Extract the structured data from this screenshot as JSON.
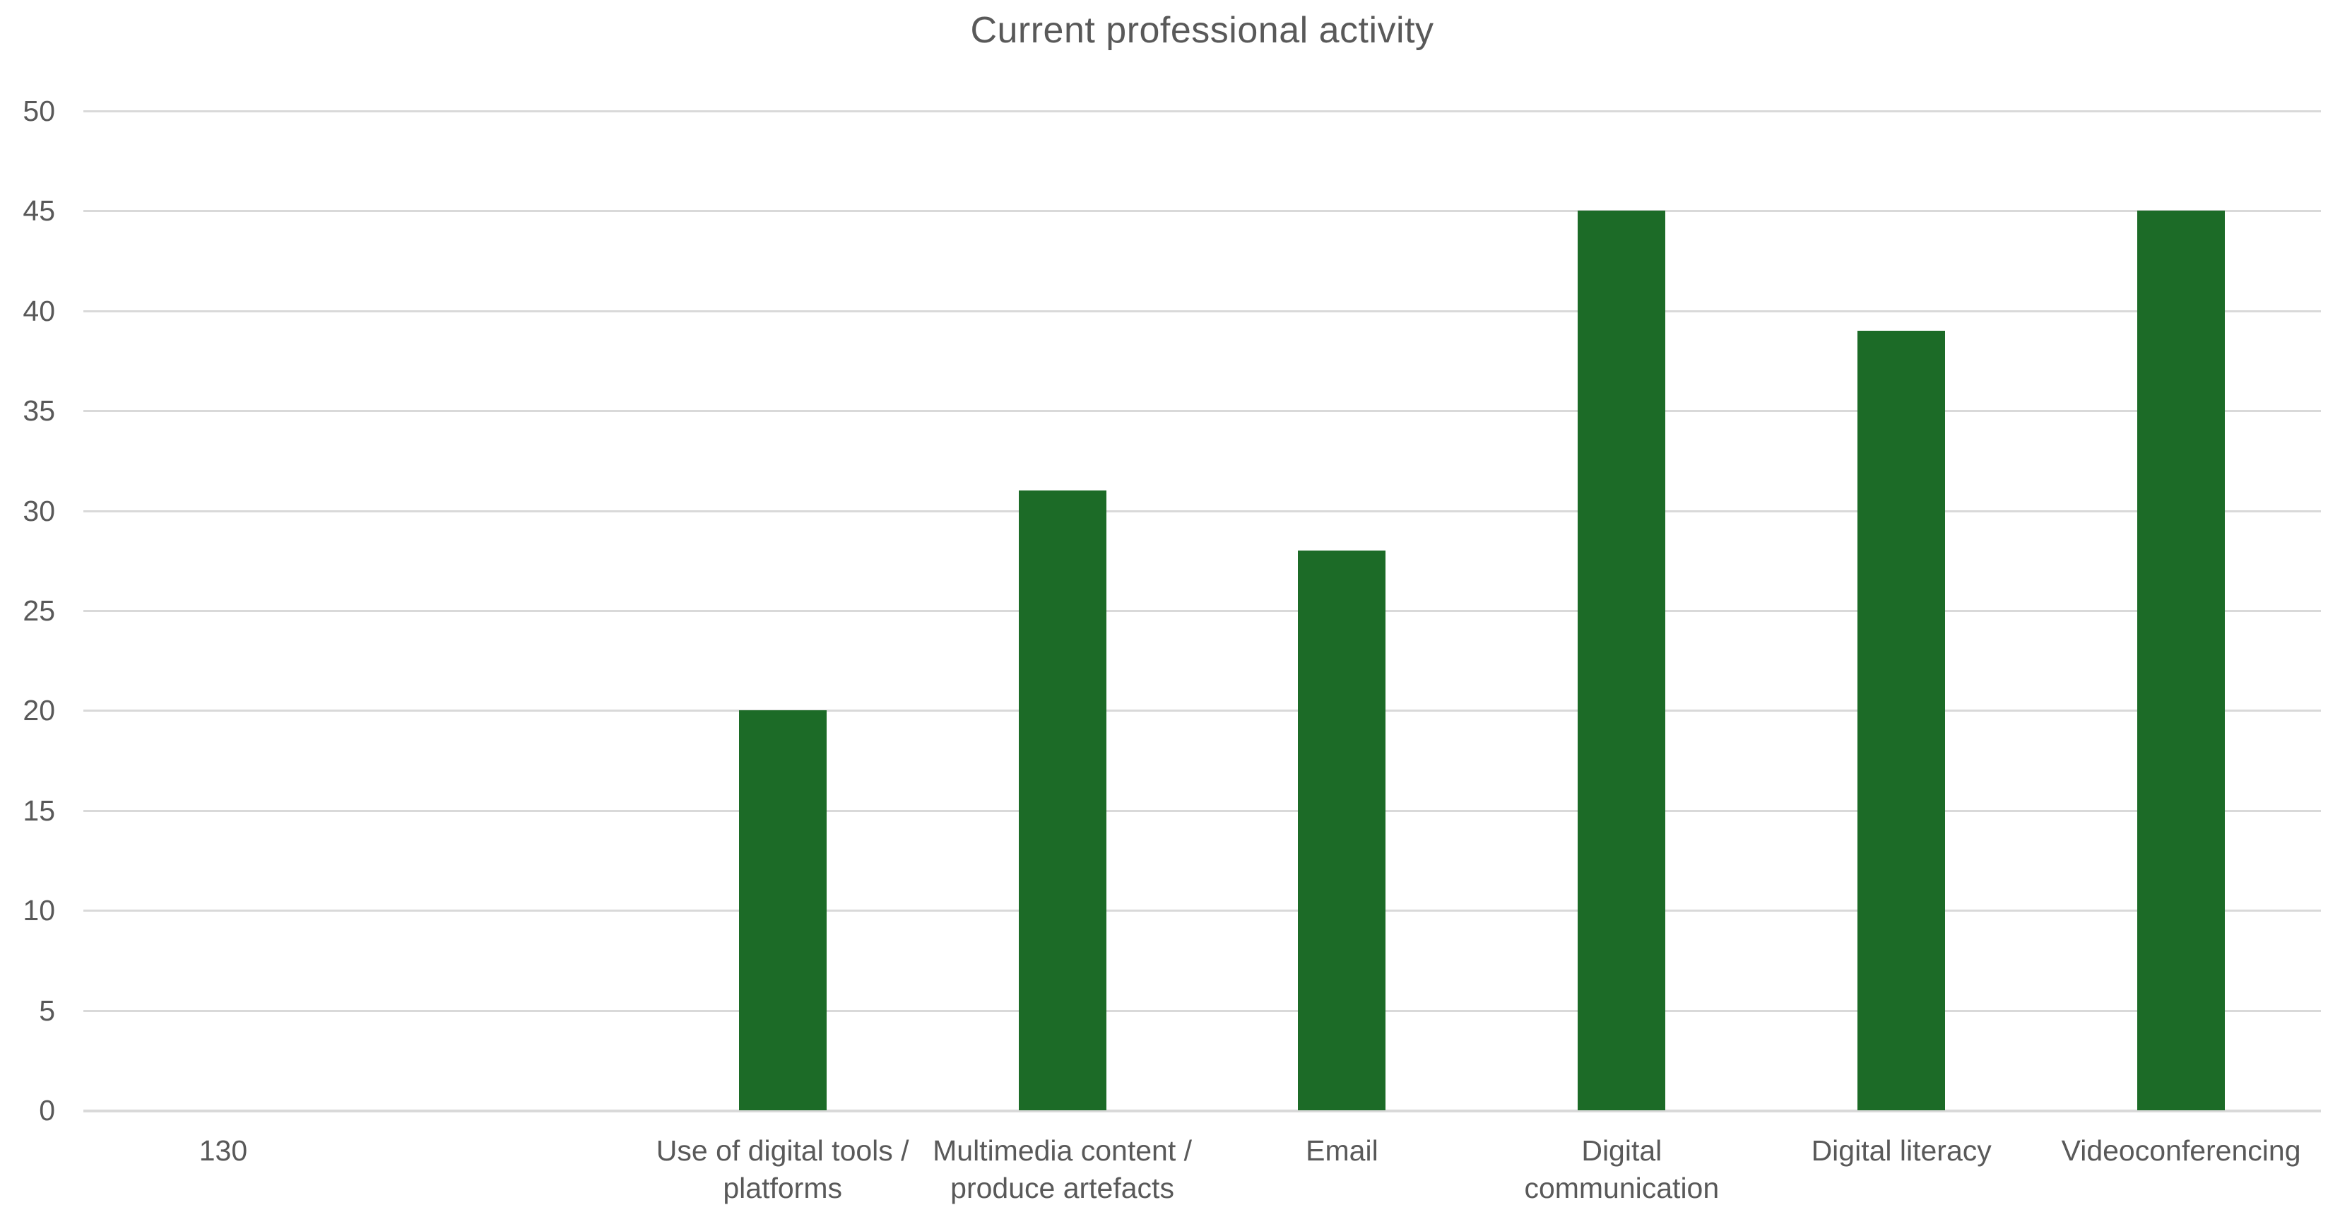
{
  "chart_data": {
    "type": "bar",
    "title": "Current professional activity",
    "categories": [
      "130",
      "",
      "Use of digital tools / platforms",
      "Multimedia content / produce artefacts",
      "Email",
      "Digital communication",
      "Digital literacy",
      "Videoconferencing"
    ],
    "category_label_lines": [
      [
        "130"
      ],
      [
        ""
      ],
      [
        "Use of digital tools /",
        "platforms"
      ],
      [
        "Multimedia content /",
        "produce artefacts"
      ],
      [
        "Email"
      ],
      [
        "Digital",
        "communication"
      ],
      [
        "Digital literacy"
      ],
      [
        "Videoconferencing"
      ]
    ],
    "values": [
      0,
      null,
      20,
      31,
      28,
      45,
      39,
      45
    ],
    "xlabel": "",
    "ylabel": "",
    "ylim": [
      0,
      50
    ],
    "ytick_step": 5,
    "yticks": [
      0,
      5,
      10,
      15,
      20,
      25,
      30,
      35,
      40,
      45,
      50
    ],
    "grid": true,
    "legend": false,
    "colors": {
      "bar": "#1C6B27",
      "gridline": "#D9D9D9",
      "axis_text": "#595959",
      "title_text": "#595959",
      "background": "#FFFFFF"
    }
  }
}
